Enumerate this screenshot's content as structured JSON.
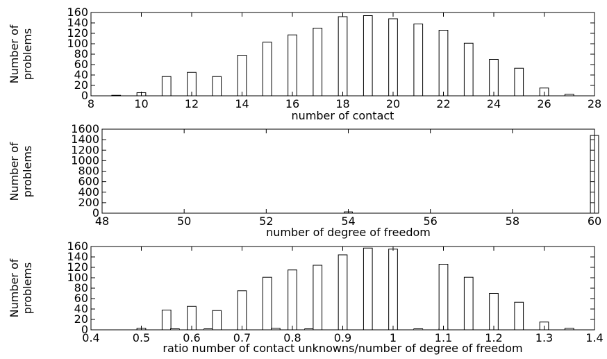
{
  "chart_data": [
    {
      "type": "bar",
      "xlabel": "number of contact",
      "ylabel": "Number of problems",
      "xlim": [
        8,
        28
      ],
      "ylim": [
        0,
        160
      ],
      "xticks": [
        8,
        10,
        12,
        14,
        16,
        18,
        20,
        22,
        24,
        26,
        28
      ],
      "yticks": [
        0,
        20,
        40,
        60,
        80,
        100,
        120,
        140,
        160
      ],
      "bar_width": 0.35,
      "x": [
        9,
        10,
        11,
        12,
        13,
        14,
        15,
        16,
        17,
        18,
        19,
        20,
        21,
        22,
        23,
        24,
        25,
        26,
        27
      ],
      "values": [
        1,
        6,
        37,
        45,
        37,
        78,
        103,
        117,
        130,
        152,
        154,
        148,
        138,
        126,
        101,
        70,
        53,
        15,
        3
      ]
    },
    {
      "type": "bar",
      "xlabel": "number of degree of freedom",
      "ylabel": "Number of problems",
      "xlim": [
        48,
        60
      ],
      "ylim": [
        0,
        1600
      ],
      "xticks": [
        48,
        50,
        52,
        54,
        56,
        58,
        60
      ],
      "yticks": [
        0,
        200,
        400,
        600,
        800,
        1000,
        1200,
        1400,
        1600
      ],
      "bar_width": 0.2,
      "x": [
        54,
        60
      ],
      "values": [
        25,
        1480
      ]
    },
    {
      "type": "bar",
      "xlabel": "ratio number of contact unknowns/number of degree of freedom",
      "ylabel": "Number of problems",
      "xlim": [
        0.4,
        1.4
      ],
      "ylim": [
        0,
        160
      ],
      "xticks": [
        "0.4",
        "0.5",
        "0.6",
        "0.7",
        "0.8",
        "0.9",
        "1",
        "1.1",
        "1.2",
        "1.3",
        "1.4"
      ],
      "yticks": [
        0,
        20,
        40,
        60,
        80,
        100,
        120,
        140,
        160
      ],
      "bar_width": 0.0175,
      "x": [
        0.5,
        0.55,
        0.5667,
        0.6,
        0.6333,
        0.65,
        0.7,
        0.7,
        0.75,
        0.7667,
        0.8,
        0.8333,
        0.85,
        0.9,
        0.95,
        1.0,
        1.05,
        1.1,
        1.1,
        1.15,
        1.2,
        1.25,
        1.3,
        1.35
      ],
      "values": [
        3,
        38,
        2,
        45,
        2,
        37,
        2,
        75,
        101,
        3,
        115,
        2,
        124,
        144,
        157,
        155,
        2,
        3,
        126,
        101,
        70,
        53,
        15,
        3
      ]
    }
  ]
}
